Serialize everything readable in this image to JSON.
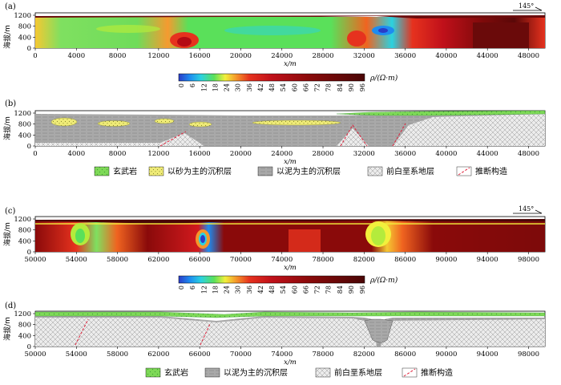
{
  "panels": [
    {
      "label": "(a)",
      "ylabel": "海拔/m",
      "xlabel": "x/m",
      "azimuth": "145°",
      "yticks": [
        "0",
        "400",
        "800",
        "1200"
      ],
      "xticks": [
        "0",
        "4000",
        "8000",
        "12000",
        "16000",
        "20000",
        "24000",
        "28000",
        "32000",
        "36000",
        "40000",
        "44000",
        "48000"
      ]
    },
    {
      "label": "(b)",
      "ylabel": "海拔/m",
      "xlabel": "x/m",
      "yticks": [
        "0",
        "400",
        "800",
        "1200"
      ],
      "xticks": [
        "0",
        "4000",
        "8000",
        "12000",
        "16000",
        "20000",
        "24000",
        "28000",
        "32000",
        "36000",
        "40000",
        "44000",
        "48000"
      ]
    },
    {
      "label": "(c)",
      "ylabel": "海拔/m",
      "xlabel": "x/m",
      "azimuth": "145°",
      "yticks": [
        "0",
        "400",
        "800",
        "1200"
      ],
      "xticks": [
        "50000",
        "54000",
        "58000",
        "62000",
        "66000",
        "70000",
        "74000",
        "78000",
        "82000",
        "86000",
        "90000",
        "94000",
        "98000"
      ]
    },
    {
      "label": "(d)",
      "ylabel": "海拔/m",
      "xlabel": "x/m",
      "yticks": [
        "0",
        "400",
        "800",
        "1200"
      ],
      "xticks": [
        "50000",
        "54000",
        "58000",
        "62000",
        "66000",
        "70000",
        "74000",
        "78000",
        "82000",
        "86000",
        "90000",
        "94000",
        "98000"
      ]
    }
  ],
  "colorbar": {
    "ticks": [
      "0",
      "6",
      "12",
      "18",
      "24",
      "30",
      "36",
      "42",
      "48",
      "54",
      "60",
      "66",
      "72",
      "78",
      "84",
      "90",
      "96"
    ],
    "unit_label": "ρ/(Ω·m)",
    "colors": [
      "#2a3cc8",
      "#1e8cf0",
      "#2ad2e0",
      "#5ae05a",
      "#b4eb3c",
      "#f2f03c",
      "#f5c832",
      "#f5962a",
      "#f06420",
      "#e6321e",
      "#d2141e",
      "#b40a14",
      "#960a0f",
      "#7d0a0a",
      "#6a0a0a",
      "#5a0808",
      "#4a0606"
    ]
  },
  "legend_b": [
    "玄武岩",
    "以砂为主的沉积层",
    "以泥为主的沉积层",
    "前白垩系地层",
    "推断构造"
  ],
  "legend_d": [
    "玄武岩",
    "以泥为主的沉积层",
    "前白垩系地层",
    "推断构造"
  ],
  "colors": {
    "basalt": "#7ed957",
    "sand": "#f0ec78",
    "mud": "#a9a9a9",
    "basement": "#e6e6e6",
    "fault": "#e0203a"
  }
}
